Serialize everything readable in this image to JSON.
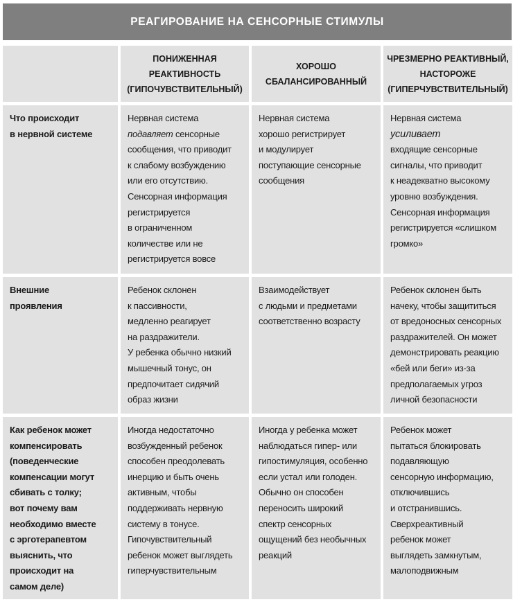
{
  "title": "РЕАГИРОВАНИЕ НА СЕНСОРНЫЕ СТИМУЛЫ",
  "columns": [
    [
      "ПОНИЖЕННАЯ",
      "РЕАКТИВНОСТЬ",
      "(ГИПОЧУВСТВИТЕЛЬНЫЙ)"
    ],
    [
      "ХОРОШО",
      "СБАЛАНСИРОВАННЫЙ"
    ],
    [
      "ЧРЕЗМЕРНО РЕАКТИВНЫЙ,",
      "НАСТОРОЖЕ",
      "(ГИПЕРЧУВСТВИТЕЛЬНЫЙ)"
    ]
  ],
  "rows": [
    {
      "label": [
        "Что происходит",
        "в нервной системе"
      ],
      "cells": [
        {
          "lines": [
            "Нервная система",
            "подавляет сенсорные",
            "сообщения, что приводит",
            "к слабому возбуждению",
            "или его отсутствию.",
            "Сенсорная информация",
            "регистрируется",
            "в ограниченном",
            "количестве или не",
            "регистрируется вовсе"
          ],
          "emphasis": "подавляет"
        },
        {
          "lines": [
            "Нервная система",
            "хорошо регистрирует",
            "и модулирует",
            "поступающие сенсорные",
            "сообщения"
          ]
        },
        {
          "lines": [
            "Нервная система",
            "усиливает",
            "входящие сенсорные",
            "сигналы, что приводит",
            "к неадекватно высокому",
            "уровню возбуждения.",
            "Сенсорная информация",
            "регистрируется «слишком",
            "громко»"
          ],
          "emphasis": "усиливает"
        }
      ]
    },
    {
      "label": [
        "Внешние",
        "проявления"
      ],
      "cells": [
        {
          "lines": [
            "Ребенок склонен",
            "к пассивности,",
            "медленно реагирует",
            "на раздражители.",
            "У ребенка обычно низкий",
            "мышечный тонус, он",
            "предпочитает сидячий",
            "образ жизни"
          ]
        },
        {
          "lines": [
            "Взаимодействует",
            "с людьми и предметами",
            "соответственно возрасту"
          ]
        },
        {
          "lines": [
            "Ребенок склонен быть",
            "начеку, чтобы защититься",
            "от вредоносных сенсорных",
            "раздражителей. Он может",
            "демонстрировать реакцию",
            "«бей или беги» из-за",
            "предполагаемых угроз",
            "личной безопасности"
          ]
        }
      ]
    },
    {
      "label": [
        "Как ребенок может",
        "компенсировать",
        "(поведенческие",
        "компенсации могут",
        "сбивать с толку;",
        "вот почему вам",
        "необходимо вместе",
        "с эрготерапевтом",
        "выяснить, что",
        "происходит на",
        "самом деле)"
      ],
      "cells": [
        {
          "lines": [
            "Иногда недостаточно",
            "возбужденный ребенок",
            "способен преодолевать",
            "инерцию и быть очень",
            "активным, чтобы",
            "поддерживать нервную",
            "систему в тонусе.",
            "Гипочувствительный",
            "ребенок может выглядеть",
            "гиперчувствительным"
          ]
        },
        {
          "lines": [
            "Иногда у ребенка может",
            "наблюдаться гипер- или",
            "гипостимуляция, особенно",
            "если устал или голоден.",
            "Обычно он способен",
            "переносить широкий",
            "спектр сенсорных",
            "ощущений без необычных",
            "реакций"
          ]
        },
        {
          "lines": [
            "Ребенок может",
            "пытаться блокировать",
            "подавляющую",
            "сенсорную информацию,",
            "отключившись",
            "и отстранившись.",
            "Сверхреактивный",
            "ребенок может",
            "выглядеть замкнутым,",
            "малоподвижным"
          ]
        }
      ]
    }
  ]
}
